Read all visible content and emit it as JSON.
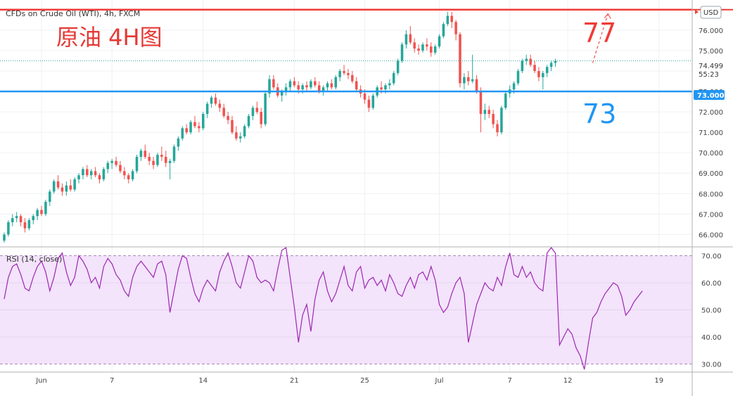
{
  "chart_data": [
    {
      "type": "candlestick",
      "title": "CFDs on Crude Oil (WTI), 4h, FXCM",
      "annotation": "原油 4H图",
      "currency": "USD",
      "ylim": [
        65.6,
        77.2
      ],
      "ytick_labels": [
        "66.000",
        "67.000",
        "68.000",
        "69.000",
        "70.000",
        "71.000",
        "72.000",
        "73.000",
        "74.000",
        "75.000",
        "76.000"
      ],
      "yticks": [
        66,
        67,
        68,
        69,
        70,
        71,
        72,
        73,
        74,
        75,
        76
      ],
      "xtick_labels": [
        "Jun",
        "7",
        "14",
        "21",
        "25",
        "Jul",
        "7",
        "12",
        "19"
      ],
      "x_index_range": [
        0,
        165
      ],
      "xtick_index": [
        9,
        26,
        48,
        70,
        87,
        105,
        122,
        136,
        158
      ],
      "last_price": "74.499",
      "countdown": "55:23",
      "levels": [
        {
          "value": 77.0,
          "label": "77",
          "color": "#ef3b36"
        },
        {
          "value": 73.0,
          "label": "73",
          "color": "#2196f3",
          "price_label": "73.000"
        }
      ],
      "forecast_arrow": {
        "from": [
          142,
          74.4
        ],
        "to": [
          144,
          76.8
        ]
      },
      "candles": [
        [
          65.7,
          66.1,
          65.6,
          66.0
        ],
        [
          66.0,
          66.7,
          65.9,
          66.6
        ],
        [
          66.6,
          67.0,
          66.4,
          66.8
        ],
        [
          66.8,
          67.1,
          66.6,
          66.9
        ],
        [
          66.9,
          67.0,
          66.4,
          66.6
        ],
        [
          66.6,
          66.8,
          66.1,
          66.3
        ],
        [
          66.3,
          66.8,
          66.2,
          66.7
        ],
        [
          66.7,
          67.0,
          66.5,
          66.9
        ],
        [
          66.9,
          67.3,
          66.7,
          67.2
        ],
        [
          67.2,
          67.4,
          66.9,
          67.0
        ],
        [
          67.0,
          67.7,
          66.9,
          67.6
        ],
        [
          67.6,
          68.2,
          67.4,
          68.1
        ],
        [
          68.1,
          68.7,
          68.0,
          68.6
        ],
        [
          68.6,
          68.9,
          68.2,
          68.3
        ],
        [
          68.3,
          68.5,
          67.9,
          68.1
        ],
        [
          68.1,
          68.6,
          67.9,
          68.4
        ],
        [
          68.4,
          68.7,
          68.1,
          68.2
        ],
        [
          68.2,
          68.8,
          68.1,
          68.7
        ],
        [
          68.7,
          69.0,
          68.5,
          68.9
        ],
        [
          68.9,
          69.3,
          68.7,
          69.2
        ],
        [
          69.2,
          69.4,
          68.8,
          68.9
        ],
        [
          68.9,
          69.2,
          68.7,
          69.1
        ],
        [
          69.1,
          69.3,
          68.8,
          68.9
        ],
        [
          68.9,
          69.0,
          68.5,
          68.7
        ],
        [
          68.7,
          69.3,
          68.6,
          69.2
        ],
        [
          69.2,
          69.6,
          69.0,
          69.5
        ],
        [
          69.5,
          69.7,
          69.2,
          69.6
        ],
        [
          69.6,
          69.8,
          69.3,
          69.4
        ],
        [
          69.4,
          69.6,
          69.0,
          69.1
        ],
        [
          69.1,
          69.3,
          68.7,
          68.9
        ],
        [
          68.9,
          69.0,
          68.5,
          68.7
        ],
        [
          68.7,
          69.2,
          68.6,
          69.1
        ],
        [
          69.1,
          69.9,
          69.0,
          69.8
        ],
        [
          69.8,
          70.2,
          69.6,
          70.1
        ],
        [
          70.1,
          70.4,
          69.7,
          69.8
        ],
        [
          69.8,
          70.0,
          69.4,
          69.6
        ],
        [
          69.6,
          69.8,
          69.2,
          69.4
        ],
        [
          69.4,
          70.0,
          69.3,
          69.9
        ],
        [
          69.9,
          70.3,
          69.6,
          69.8
        ],
        [
          69.8,
          70.1,
          69.3,
          69.5
        ],
        [
          69.5,
          69.7,
          68.7,
          69.6
        ],
        [
          69.6,
          70.4,
          69.5,
          70.3
        ],
        [
          70.3,
          70.8,
          70.1,
          70.7
        ],
        [
          70.7,
          71.3,
          70.6,
          71.2
        ],
        [
          71.2,
          71.4,
          70.9,
          71.0
        ],
        [
          71.0,
          71.6,
          70.9,
          71.5
        ],
        [
          71.5,
          71.8,
          71.2,
          71.3
        ],
        [
          71.3,
          71.5,
          71.0,
          71.2
        ],
        [
          71.2,
          72.0,
          71.1,
          71.9
        ],
        [
          71.9,
          72.5,
          71.7,
          72.4
        ],
        [
          72.4,
          72.8,
          72.2,
          72.7
        ],
        [
          72.7,
          72.9,
          72.3,
          72.4
        ],
        [
          72.4,
          72.6,
          72.0,
          72.2
        ],
        [
          72.2,
          72.4,
          71.7,
          71.8
        ],
        [
          71.8,
          72.0,
          71.4,
          71.6
        ],
        [
          71.6,
          71.8,
          70.9,
          71.0
        ],
        [
          71.0,
          71.3,
          70.6,
          70.7
        ],
        [
          70.7,
          71.0,
          70.5,
          70.8
        ],
        [
          70.8,
          71.4,
          70.7,
          71.3
        ],
        [
          71.3,
          71.9,
          71.2,
          71.8
        ],
        [
          71.8,
          72.3,
          71.6,
          72.2
        ],
        [
          72.2,
          72.5,
          71.9,
          72.0
        ],
        [
          72.0,
          72.2,
          71.2,
          71.4
        ],
        [
          71.4,
          73.0,
          71.3,
          72.9
        ],
        [
          72.9,
          73.8,
          72.7,
          73.6
        ],
        [
          73.6,
          73.8,
          73.1,
          73.2
        ],
        [
          73.2,
          73.4,
          72.7,
          72.8
        ],
        [
          72.8,
          73.1,
          72.5,
          73.0
        ],
        [
          73.0,
          73.4,
          72.8,
          73.2
        ],
        [
          73.2,
          73.6,
          73.0,
          73.5
        ],
        [
          73.5,
          73.7,
          73.2,
          73.3
        ],
        [
          73.3,
          73.5,
          72.9,
          73.1
        ],
        [
          73.1,
          73.4,
          72.9,
          73.3
        ],
        [
          73.3,
          73.5,
          73.0,
          73.2
        ],
        [
          73.2,
          73.6,
          73.1,
          73.5
        ],
        [
          73.5,
          73.7,
          73.2,
          73.3
        ],
        [
          73.3,
          73.5,
          72.9,
          73.0
        ],
        [
          73.0,
          73.3,
          72.8,
          73.2
        ],
        [
          73.2,
          73.5,
          73.0,
          73.4
        ],
        [
          73.4,
          73.6,
          73.1,
          73.2
        ],
        [
          73.2,
          73.8,
          73.1,
          73.7
        ],
        [
          73.7,
          74.1,
          73.5,
          74.0
        ],
        [
          74.0,
          74.3,
          73.8,
          73.9
        ],
        [
          73.9,
          74.1,
          73.6,
          73.8
        ],
        [
          73.8,
          74.0,
          73.4,
          73.5
        ],
        [
          73.5,
          73.7,
          73.0,
          73.1
        ],
        [
          73.1,
          73.3,
          72.7,
          72.9
        ],
        [
          72.9,
          73.1,
          72.4,
          72.6
        ],
        [
          72.6,
          72.8,
          72.0,
          72.2
        ],
        [
          72.2,
          72.9,
          72.1,
          72.8
        ],
        [
          72.8,
          73.3,
          72.7,
          73.2
        ],
        [
          73.2,
          73.5,
          72.9,
          73.1
        ],
        [
          73.1,
          73.4,
          72.9,
          73.3
        ],
        [
          73.3,
          73.6,
          73.1,
          73.4
        ],
        [
          73.4,
          74.0,
          73.3,
          73.9
        ],
        [
          73.9,
          74.6,
          73.8,
          74.5
        ],
        [
          74.5,
          75.4,
          74.4,
          75.3
        ],
        [
          75.3,
          76.0,
          75.1,
          75.8
        ],
        [
          75.8,
          76.2,
          75.3,
          75.4
        ],
        [
          75.4,
          75.6,
          74.9,
          75.1
        ],
        [
          75.1,
          75.3,
          74.8,
          75.0
        ],
        [
          75.0,
          75.4,
          74.9,
          75.3
        ],
        [
          75.3,
          75.6,
          75.0,
          75.2
        ],
        [
          75.2,
          75.4,
          74.7,
          74.9
        ],
        [
          74.9,
          75.3,
          74.8,
          75.2
        ],
        [
          75.2,
          75.8,
          75.1,
          75.7
        ],
        [
          75.7,
          76.4,
          75.6,
          76.3
        ],
        [
          76.3,
          76.9,
          76.2,
          76.7
        ],
        [
          76.7,
          76.9,
          76.1,
          76.4
        ],
        [
          76.4,
          76.5,
          75.5,
          75.8
        ],
        [
          75.8,
          75.9,
          73.2,
          73.4
        ],
        [
          73.4,
          73.9,
          73.1,
          73.7
        ],
        [
          73.7,
          74.0,
          73.3,
          73.5
        ],
        [
          73.5,
          74.8,
          73.4,
          73.6
        ],
        [
          73.6,
          73.8,
          72.9,
          73.0
        ],
        [
          73.0,
          73.2,
          71.0,
          71.9
        ],
        [
          71.9,
          72.4,
          71.6,
          72.1
        ],
        [
          72.1,
          72.3,
          71.7,
          71.9
        ],
        [
          71.9,
          72.1,
          71.2,
          71.4
        ],
        [
          71.4,
          71.6,
          70.8,
          71.0
        ],
        [
          71.0,
          72.3,
          70.9,
          72.2
        ],
        [
          72.2,
          73.0,
          72.1,
          72.9
        ],
        [
          72.9,
          73.3,
          72.7,
          73.1
        ],
        [
          73.1,
          73.5,
          72.9,
          73.4
        ],
        [
          73.4,
          74.1,
          73.3,
          74.0
        ],
        [
          74.0,
          74.6,
          73.9,
          74.5
        ],
        [
          74.5,
          74.8,
          74.3,
          74.6
        ],
        [
          74.6,
          74.8,
          74.2,
          74.3
        ],
        [
          74.3,
          74.5,
          73.9,
          74.0
        ],
        [
          74.0,
          74.2,
          73.5,
          73.7
        ],
        [
          73.7,
          74.0,
          73.1,
          73.9
        ],
        [
          73.9,
          74.3,
          73.7,
          74.2
        ],
        [
          74.2,
          74.5,
          74.0,
          74.4
        ],
        [
          74.4,
          74.6,
          74.2,
          74.5
        ]
      ]
    },
    {
      "type": "line",
      "title": "RSI (14, close)",
      "ylim": [
        27,
        73
      ],
      "band": [
        30,
        70
      ],
      "yticks": [
        30,
        40,
        50,
        60,
        70
      ],
      "ytick_labels": [
        "30.00",
        "40.00",
        "50.00",
        "60.00",
        "70.00"
      ],
      "values": [
        54,
        62,
        66,
        67,
        63,
        58,
        57,
        62,
        66,
        68,
        64,
        57,
        62,
        69,
        71,
        64,
        59,
        62,
        70,
        68,
        65,
        60,
        62,
        58,
        66,
        69,
        67,
        63,
        61,
        57,
        55,
        62,
        66,
        68,
        66,
        64,
        62,
        67,
        68,
        63,
        49,
        57,
        65,
        70,
        69,
        62,
        56,
        53,
        58,
        61,
        59,
        57,
        64,
        68,
        71,
        66,
        60,
        58,
        64,
        70,
        68,
        62,
        60,
        61,
        60,
        57,
        65,
        72,
        73,
        62,
        51,
        38,
        48,
        52,
        42,
        54,
        61,
        64,
        57,
        53,
        56,
        61,
        66,
        59,
        57,
        64,
        66,
        58,
        61,
        62,
        59,
        61,
        57,
        63,
        60,
        56,
        55,
        59,
        62,
        58,
        63,
        64,
        61,
        66,
        61,
        52,
        49,
        51,
        56,
        60,
        62,
        56,
        38,
        45,
        52,
        56,
        60,
        58,
        57,
        62,
        59,
        66,
        71,
        63,
        62,
        66,
        62,
        64,
        60,
        58,
        57,
        71,
        73,
        71,
        37,
        40,
        43,
        41,
        36,
        33,
        28,
        38,
        47,
        49,
        53,
        56,
        58,
        60,
        59,
        55,
        48,
        50,
        53,
        55,
        57
      ]
    }
  ],
  "axis": {
    "currency_label": "USD"
  }
}
